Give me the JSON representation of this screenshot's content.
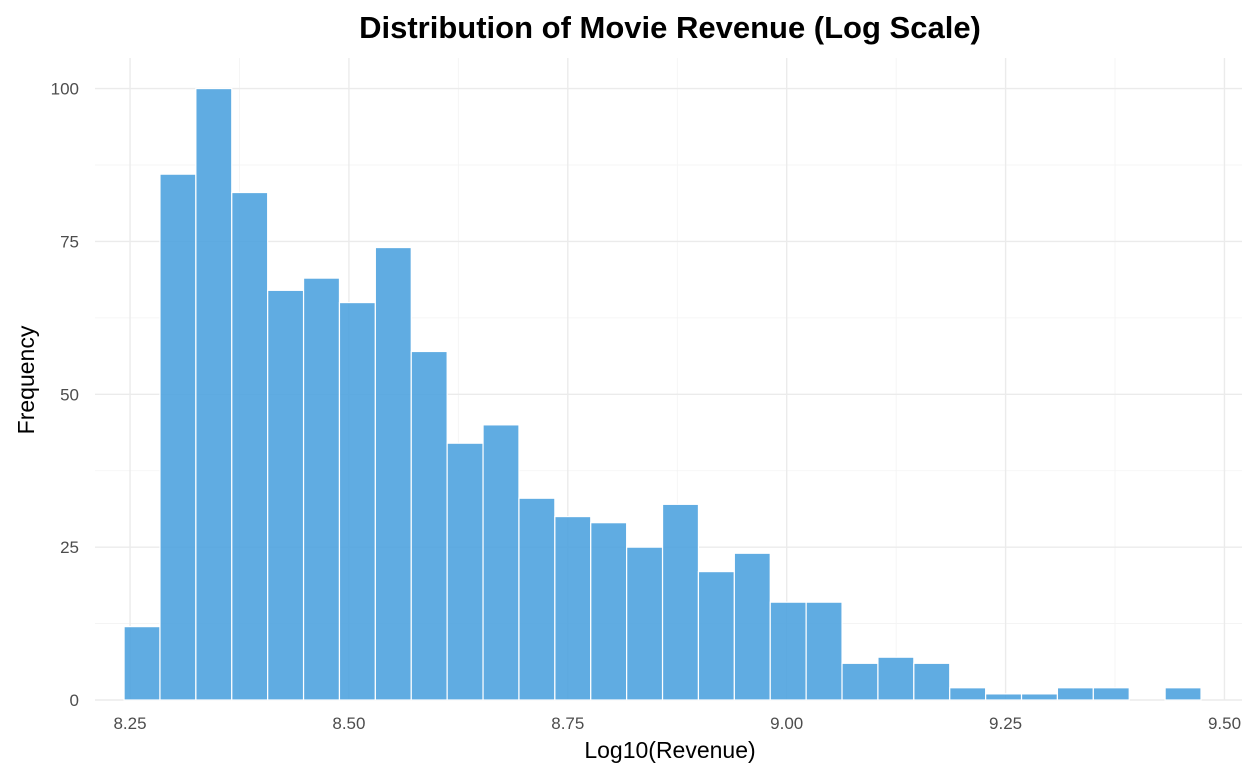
{
  "chart_data": {
    "type": "bar",
    "title": "Distribution of Movie Revenue (Log Scale)",
    "xlabel": "Log10(Revenue)",
    "ylabel": "Frequency",
    "xlim": [
      8.21,
      9.52
    ],
    "ylim": [
      0,
      105
    ],
    "x_ticks": [
      8.25,
      8.5,
      8.75,
      9.0,
      9.25,
      9.5
    ],
    "x_tick_labels": [
      "8.25",
      "8.50",
      "8.75",
      "9.00",
      "9.25",
      "9.50"
    ],
    "y_ticks": [
      0,
      25,
      50,
      75,
      100
    ],
    "y_tick_labels": [
      "0",
      "25",
      "50",
      "75",
      "100"
    ],
    "grid": true,
    "bar_color": "#4fa3df",
    "bin_edges": [
      8.2432,
      8.2842,
      8.3252,
      8.3662,
      8.4072,
      8.4482,
      8.4892,
      8.5302,
      8.5712,
      8.6122,
      8.6532,
      8.6942,
      8.7352,
      8.7762,
      8.8172,
      8.8582,
      8.8992,
      8.9402,
      8.9812,
      9.0222,
      9.0632,
      9.1042,
      9.1452,
      9.1862,
      9.2272,
      9.2682,
      9.3092,
      9.3502,
      9.3912,
      9.4322,
      9.4732
    ],
    "values": [
      12,
      86,
      100,
      83,
      67,
      69,
      65,
      74,
      57,
      42,
      45,
      33,
      30,
      29,
      25,
      32,
      21,
      24,
      16,
      16,
      6,
      7,
      6,
      2,
      1,
      1,
      2,
      2,
      0,
      2
    ]
  }
}
